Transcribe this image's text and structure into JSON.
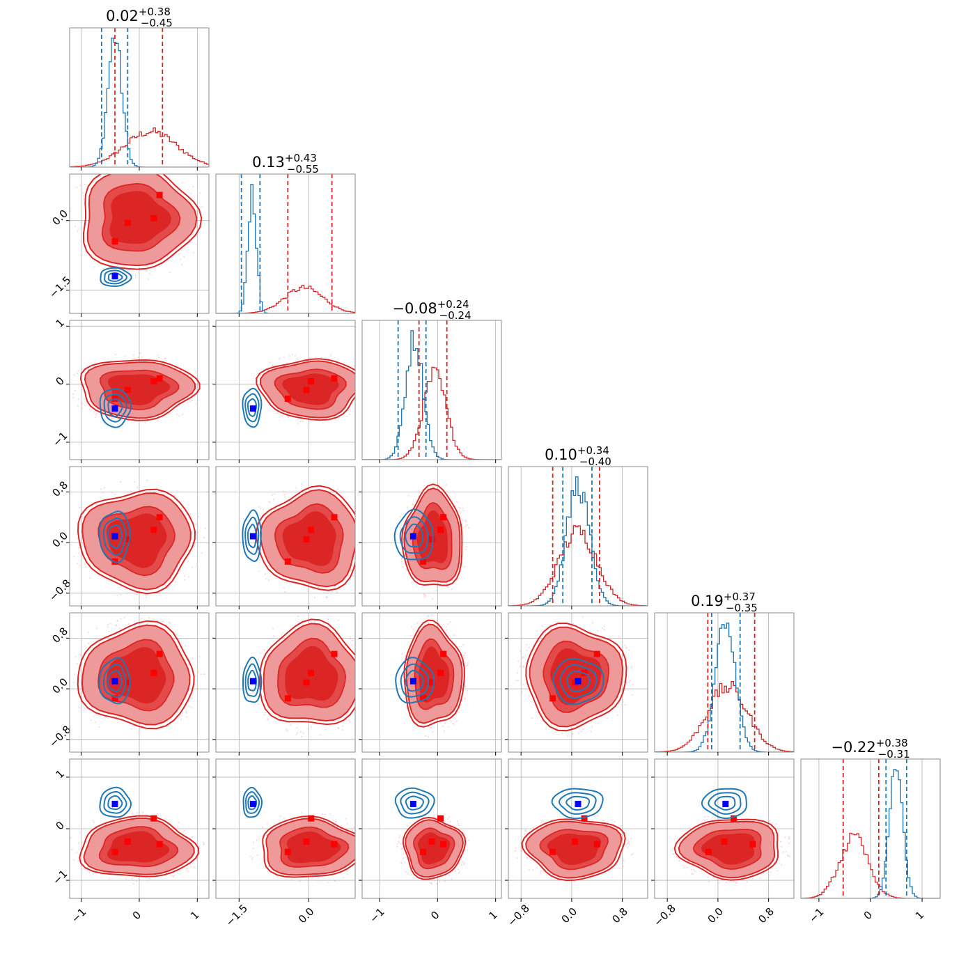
{
  "chart_data": {
    "type": "corner",
    "n_params": 6,
    "colors": {
      "red": "#d62728",
      "blue": "#1f77b4",
      "fill_dark": "#dc2626",
      "fill_light": "#ef9a9a",
      "marker_blue": "#0000ff",
      "marker_red": "#ff0000"
    },
    "params": [
      {
        "title": {
          "main": "0.02",
          "plus": "+0.38",
          "minus": "−0.45"
        },
        "range": [
          -1.2,
          1.2
        ],
        "ticks": [
          -1,
          0,
          1
        ],
        "tick_labels": [
          "−1",
          "0",
          "1"
        ],
        "red": {
          "center": 0.2,
          "sd": 0.45,
          "quantiles": [
            -0.42,
            0.4
          ]
        },
        "blue": {
          "center": -0.42,
          "sd": 0.12,
          "quantiles": [
            -0.65,
            -0.2
          ]
        }
      },
      {
        "title": {
          "main": "0.13",
          "plus": "+0.43",
          "minus": "−0.55"
        },
        "range": [
          -2.0,
          1.0
        ],
        "ticks": [
          -1.5,
          0.0
        ],
        "tick_labels": [
          "−1.5",
          "0.0"
        ],
        "red": {
          "center": -0.1,
          "sd": 0.42,
          "quantiles": [
            -0.45,
            0.5
          ]
        },
        "blue": {
          "center": -1.22,
          "sd": 0.09,
          "quantiles": [
            -1.45,
            -1.05
          ]
        }
      },
      {
        "title": {
          "main": "−0.08",
          "plus": "+0.24",
          "minus": "−0.24"
        },
        "range": [
          -1.3,
          1.1
        ],
        "ticks": [
          -1,
          0,
          1
        ],
        "tick_labels": [
          "−1",
          "0",
          "1"
        ],
        "red": {
          "center": -0.05,
          "sd": 0.2,
          "quantiles": [
            -0.32,
            0.16
          ]
        },
        "blue": {
          "center": -0.4,
          "sd": 0.15,
          "quantiles": [
            -0.68,
            -0.2
          ]
        }
      },
      {
        "title": {
          "main": "0.10",
          "plus": "+0.34",
          "minus": "−0.40"
        },
        "range": [
          -1.0,
          1.2
        ],
        "ticks": [
          -0.8,
          0.0,
          0.8
        ],
        "tick_labels": [
          "−0.8",
          "0.0",
          "0.8"
        ],
        "red": {
          "center": 0.1,
          "sd": 0.3,
          "quantiles": [
            -0.3,
            0.44
          ]
        },
        "blue": {
          "center": 0.1,
          "sd": 0.18,
          "quantiles": [
            -0.14,
            0.32
          ]
        }
      },
      {
        "title": {
          "main": "0.19",
          "plus": "+0.37",
          "minus": "−0.35"
        },
        "range": [
          -1.0,
          1.2
        ],
        "ticks": [
          -0.8,
          0.0,
          0.8
        ],
        "tick_labels": [
          "−0.8",
          "0.0",
          "0.8"
        ],
        "red": {
          "center": 0.15,
          "sd": 0.32,
          "quantiles": [
            -0.16,
            0.58
          ]
        },
        "blue": {
          "center": 0.12,
          "sd": 0.16,
          "quantiles": [
            -0.1,
            0.35
          ]
        }
      },
      {
        "title": {
          "main": "−0.22",
          "plus": "+0.38",
          "minus": "−0.31"
        },
        "range": [
          -1.35,
          1.35
        ],
        "ticks": [
          -1,
          0,
          1
        ],
        "tick_labels": [
          "−1",
          "0",
          "1"
        ],
        "red": {
          "center": -0.32,
          "sd": 0.28,
          "quantiles": [
            -0.53,
            0.16
          ]
        },
        "blue": {
          "center": 0.5,
          "sd": 0.13,
          "quantiles": [
            0.3,
            0.7
          ]
        }
      }
    ],
    "y_axis_ticks": [
      null,
      {
        "ticks": [
          0.0,
          -1.5
        ],
        "tick_labels": [
          "0.0",
          "−1.5"
        ]
      },
      {
        "ticks": [
          1,
          0,
          -1
        ],
        "tick_labels": [
          "1",
          "0",
          "−1"
        ]
      },
      {
        "ticks": [
          0.8,
          0.0,
          -0.8
        ],
        "tick_labels": [
          "0.8",
          "0.0",
          "−0.8"
        ]
      },
      {
        "ticks": [
          0.8,
          0.0,
          -0.8
        ],
        "tick_labels": [
          "0.8",
          "0.0",
          "−0.8"
        ]
      },
      {
        "ticks": [
          1,
          0,
          -1
        ],
        "tick_labels": [
          "1",
          "0",
          "−1"
        ]
      }
    ],
    "blue_markers": [
      -0.42,
      -1.2,
      -0.42,
      0.1,
      0.12,
      0.48
    ],
    "red_modes": [
      [
        -0.42,
        -0.2,
        0.25,
        0.35
      ],
      [
        -0.45,
        -0.05,
        0.05,
        0.55
      ],
      [
        -0.25,
        -0.1,
        0.05,
        0.1
      ],
      [
        -0.3,
        0.05,
        0.2,
        0.4
      ],
      [
        -0.15,
        0.1,
        0.25,
        0.55
      ],
      [
        -0.45,
        -0.25,
        0.2,
        -0.3
      ]
    ],
    "grid": true,
    "legend": null
  }
}
